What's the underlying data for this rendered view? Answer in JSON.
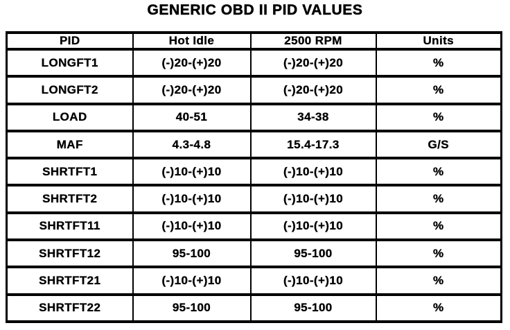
{
  "title": "GENERIC OBD II PID VALUES",
  "table": {
    "columns": [
      "PID",
      "Hot Idle",
      "2500 RPM",
      "Units"
    ],
    "rows": [
      {
        "pid": "LONGFT1",
        "hot_idle": "(-)20-(+)20",
        "rpm_2500": "(-)20-(+)20",
        "units": "%"
      },
      {
        "pid": "LONGFT2",
        "hot_idle": "(-)20-(+)20",
        "rpm_2500": "(-)20-(+)20",
        "units": "%"
      },
      {
        "pid": "LOAD",
        "hot_idle": "40-51",
        "rpm_2500": "34-38",
        "units": "%"
      },
      {
        "pid": "MAF",
        "hot_idle": "4.3-4.8",
        "rpm_2500": "15.4-17.3",
        "units": "G/S"
      },
      {
        "pid": "SHRTFT1",
        "hot_idle": "(-)10-(+)10",
        "rpm_2500": "(-)10-(+)10",
        "units": "%"
      },
      {
        "pid": "SHRTFT2",
        "hot_idle": "(-)10-(+)10",
        "rpm_2500": "(-)10-(+)10",
        "units": "%"
      },
      {
        "pid": "SHRTFT11",
        "hot_idle": "(-)10-(+)10",
        "rpm_2500": "(-)10-(+)10",
        "units": "%"
      },
      {
        "pid": "SHRTFT12",
        "hot_idle": "95-100",
        "rpm_2500": "95-100",
        "units": "%"
      },
      {
        "pid": "SHRTFT21",
        "hot_idle": "(-)10-(+)10",
        "rpm_2500": "(-)10-(+)10",
        "units": "%"
      },
      {
        "pid": "SHRTFT22",
        "hot_idle": "95-100",
        "rpm_2500": "95-100",
        "units": "%"
      }
    ]
  },
  "colors": {
    "ink": "#000000",
    "paper": "#ffffff"
  }
}
